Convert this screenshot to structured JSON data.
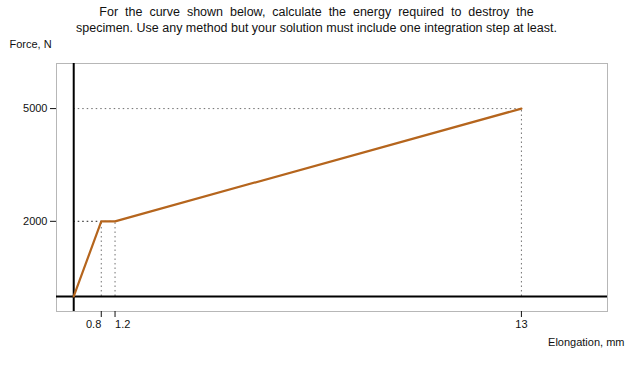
{
  "chart_data": {
    "type": "line",
    "title": "For  the  curve  shown  below,  calculate  the  energy  required  to  destroy  the",
    "subtitle": "specimen. Use any method but your solution must include one integration step at least.",
    "xlabel": "Elongation, mm",
    "ylabel": "Force, N",
    "x": [
      0,
      0.8,
      1.2,
      13
    ],
    "values": [
      0,
      2000,
      2000,
      5000
    ],
    "color": "#b5651d",
    "xlim": [
      -0.5,
      15.5
    ],
    "ylim": [
      -400,
      6200
    ],
    "xticks": [
      0.8,
      1.2,
      13
    ],
    "yticks": [
      2000,
      5000
    ],
    "grid": false
  }
}
